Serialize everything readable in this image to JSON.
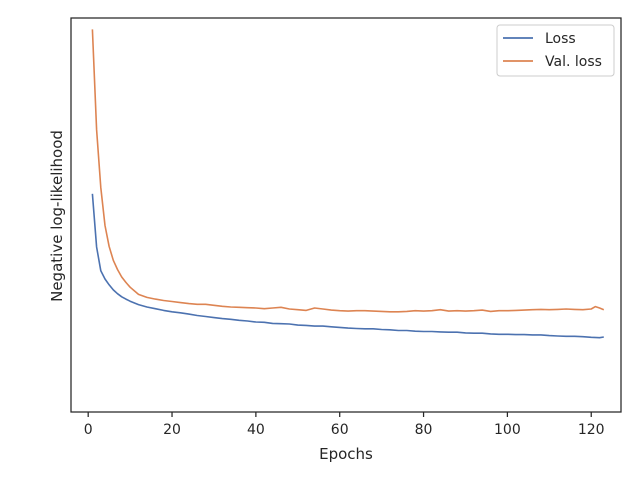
{
  "chart_data": {
    "type": "line",
    "title": "",
    "xlabel": "Epochs",
    "ylabel": "Negative log-likelihood",
    "xlim": [
      -4.1,
      127.1
    ],
    "ylim": [
      0,
      100
    ],
    "y_tick_labels_shown": false,
    "xticks": [
      {
        "value": 0,
        "label": "0"
      },
      {
        "value": 20,
        "label": "20"
      },
      {
        "value": 40,
        "label": "40"
      },
      {
        "value": 60,
        "label": "60"
      },
      {
        "value": 80,
        "label": "80"
      },
      {
        "value": 100,
        "label": "100"
      },
      {
        "value": 120,
        "label": "120"
      }
    ],
    "grid": false,
    "legend": {
      "position": "top-right"
    },
    "series": [
      {
        "name": "Loss",
        "color": "#4c72b0",
        "points": [
          [
            1,
            50.8
          ],
          [
            2,
            35.2
          ],
          [
            3,
            28.2
          ],
          [
            4,
            25.8
          ],
          [
            5,
            24.1
          ],
          [
            6,
            22.6
          ],
          [
            7,
            21.5
          ],
          [
            8,
            20.6
          ],
          [
            9,
            19.9
          ],
          [
            10,
            19.3
          ],
          [
            12,
            18.3
          ],
          [
            14,
            17.6
          ],
          [
            16,
            17.1
          ],
          [
            18,
            16.6
          ],
          [
            20,
            16.2
          ],
          [
            22,
            15.9
          ],
          [
            24,
            15.5
          ],
          [
            26,
            15.1
          ],
          [
            28,
            14.8
          ],
          [
            30,
            14.5
          ],
          [
            32,
            14.2
          ],
          [
            34,
            14.0
          ],
          [
            36,
            13.7
          ],
          [
            38,
            13.5
          ],
          [
            40,
            13.2
          ],
          [
            42,
            13.1
          ],
          [
            44,
            12.8
          ],
          [
            46,
            12.7
          ],
          [
            48,
            12.6
          ],
          [
            50,
            12.3
          ],
          [
            52,
            12.2
          ],
          [
            54,
            12.0
          ],
          [
            56,
            12.0
          ],
          [
            58,
            11.8
          ],
          [
            60,
            11.6
          ],
          [
            62,
            11.4
          ],
          [
            64,
            11.3
          ],
          [
            66,
            11.2
          ],
          [
            68,
            11.2
          ],
          [
            70,
            11.0
          ],
          [
            72,
            10.9
          ],
          [
            74,
            10.7
          ],
          [
            76,
            10.7
          ],
          [
            78,
            10.5
          ],
          [
            80,
            10.4
          ],
          [
            82,
            10.4
          ],
          [
            84,
            10.3
          ],
          [
            86,
            10.2
          ],
          [
            88,
            10.2
          ],
          [
            90,
            10.0
          ],
          [
            92,
            9.9
          ],
          [
            94,
            9.9
          ],
          [
            96,
            9.7
          ],
          [
            98,
            9.6
          ],
          [
            100,
            9.6
          ],
          [
            102,
            9.5
          ],
          [
            104,
            9.5
          ],
          [
            106,
            9.4
          ],
          [
            108,
            9.4
          ],
          [
            110,
            9.2
          ],
          [
            112,
            9.1
          ],
          [
            114,
            9.0
          ],
          [
            116,
            9.0
          ],
          [
            118,
            8.9
          ],
          [
            120,
            8.7
          ],
          [
            122,
            8.6
          ],
          [
            123,
            8.8
          ]
        ]
      },
      {
        "name": "Val. loss",
        "color": "#dd8452",
        "points": [
          [
            1,
            99.0
          ],
          [
            2,
            69.6
          ],
          [
            3,
            52.6
          ],
          [
            4,
            41.5
          ],
          [
            5,
            35.4
          ],
          [
            6,
            31.3
          ],
          [
            7,
            28.6
          ],
          [
            8,
            26.4
          ],
          [
            9,
            24.8
          ],
          [
            10,
            23.4
          ],
          [
            12,
            21.3
          ],
          [
            14,
            20.4
          ],
          [
            16,
            19.9
          ],
          [
            18,
            19.5
          ],
          [
            20,
            19.2
          ],
          [
            22,
            18.9
          ],
          [
            24,
            18.6
          ],
          [
            26,
            18.4
          ],
          [
            28,
            18.4
          ],
          [
            30,
            18.1
          ],
          [
            32,
            17.8
          ],
          [
            34,
            17.6
          ],
          [
            36,
            17.5
          ],
          [
            38,
            17.4
          ],
          [
            40,
            17.3
          ],
          [
            42,
            17.1
          ],
          [
            44,
            17.3
          ],
          [
            46,
            17.5
          ],
          [
            48,
            17.0
          ],
          [
            50,
            16.8
          ],
          [
            52,
            16.6
          ],
          [
            54,
            17.3
          ],
          [
            56,
            17.0
          ],
          [
            58,
            16.7
          ],
          [
            60,
            16.5
          ],
          [
            62,
            16.4
          ],
          [
            64,
            16.5
          ],
          [
            66,
            16.5
          ],
          [
            68,
            16.4
          ],
          [
            70,
            16.3
          ],
          [
            72,
            16.2
          ],
          [
            74,
            16.2
          ],
          [
            76,
            16.3
          ],
          [
            78,
            16.5
          ],
          [
            80,
            16.4
          ],
          [
            82,
            16.5
          ],
          [
            84,
            16.8
          ],
          [
            86,
            16.4
          ],
          [
            88,
            16.5
          ],
          [
            90,
            16.4
          ],
          [
            92,
            16.5
          ],
          [
            94,
            16.7
          ],
          [
            96,
            16.3
          ],
          [
            98,
            16.5
          ],
          [
            100,
            16.5
          ],
          [
            102,
            16.6
          ],
          [
            104,
            16.7
          ],
          [
            106,
            16.8
          ],
          [
            108,
            16.9
          ],
          [
            110,
            16.8
          ],
          [
            112,
            16.9
          ],
          [
            114,
            17.0
          ],
          [
            116,
            16.9
          ],
          [
            118,
            16.8
          ],
          [
            120,
            17.0
          ],
          [
            121,
            17.7
          ],
          [
            122,
            17.3
          ],
          [
            123,
            16.8
          ]
        ]
      }
    ]
  }
}
